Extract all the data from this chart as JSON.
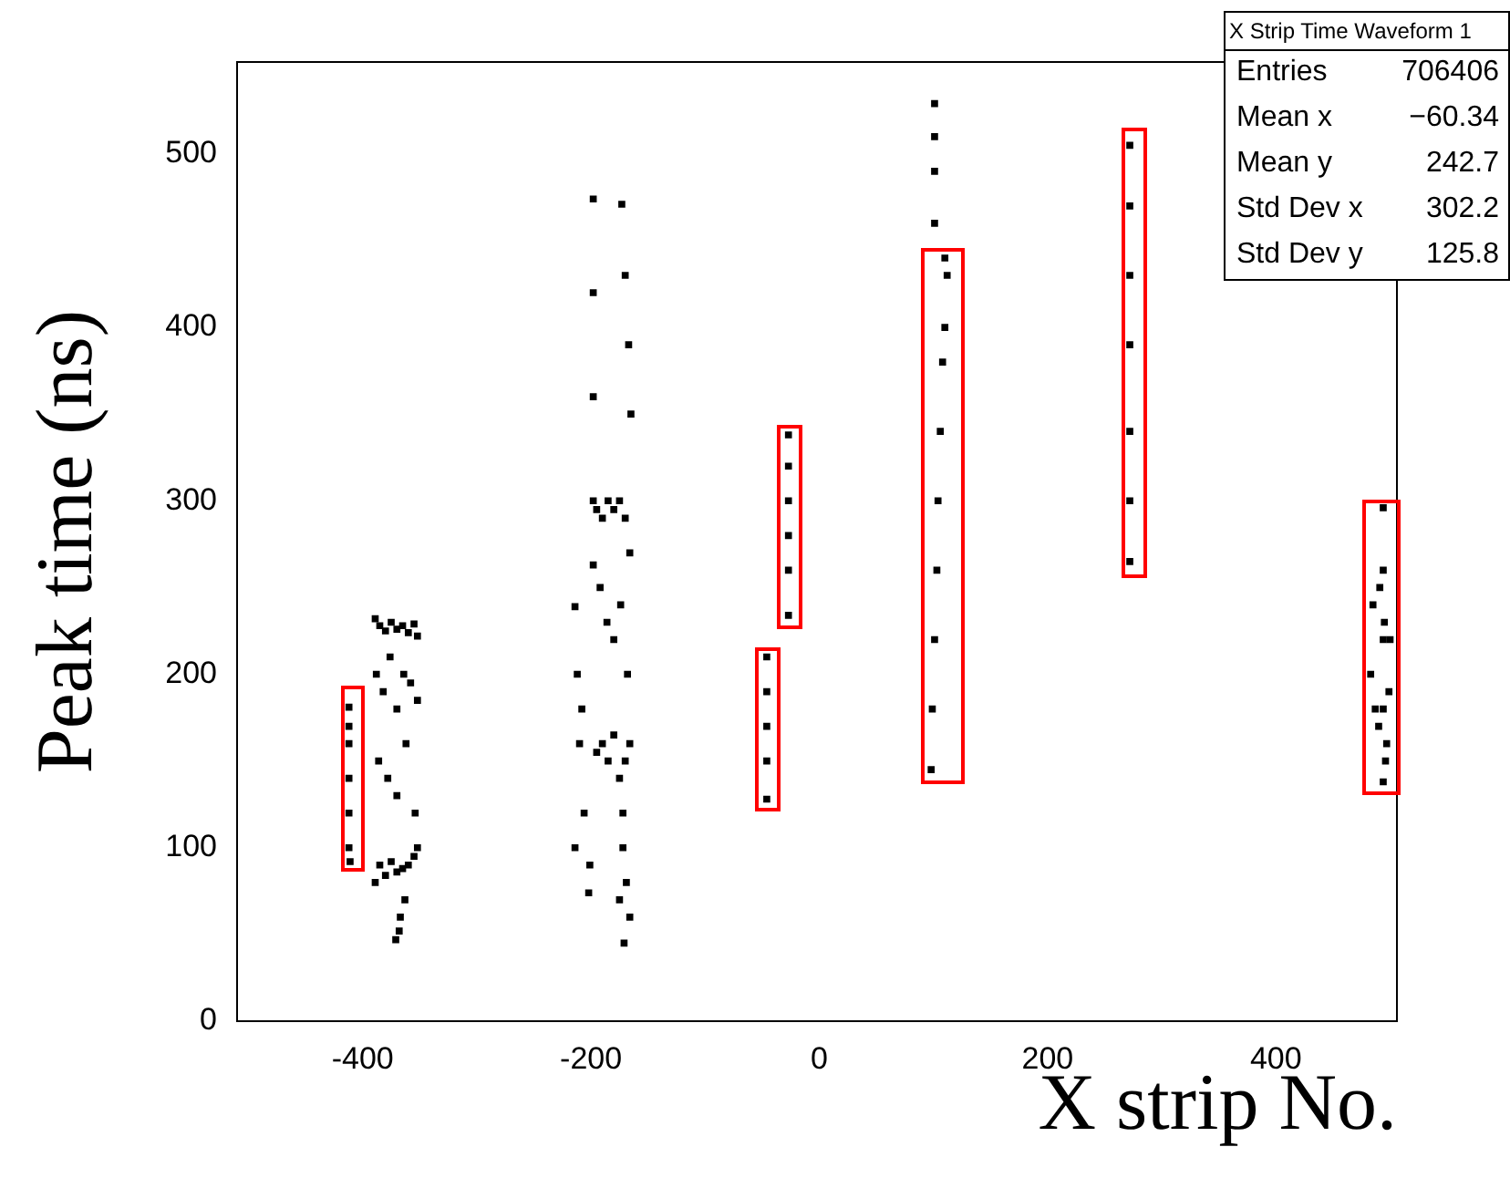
{
  "chart_data": {
    "type": "scatter",
    "title": "X Strip Time Waveform 1",
    "xlabel": "X strip No.",
    "ylabel": "Peak time (ns)",
    "xlim": [
      -510,
      506
    ],
    "ylim": [
      0,
      553
    ],
    "xticks": [
      -400,
      -200,
      0,
      200,
      400
    ],
    "yticks": [
      0,
      100,
      200,
      300,
      400,
      500
    ],
    "grid": false,
    "legend": false,
    "marker": "square",
    "annotations": [
      "Entries 706406",
      "Mean x −60.34",
      "Mean y 242.7",
      "Std Dev x 302.2",
      "Std Dev y 125.8"
    ],
    "series": [
      {
        "color": "#000000",
        "x": [
          -412,
          -412,
          -412,
          -412,
          -412,
          -411,
          -412,
          -389,
          -385,
          -380,
          -375,
          -370,
          -365,
          -360,
          -355,
          -352,
          -389,
          -385,
          -380,
          -375,
          -370,
          -365,
          -360,
          -355,
          -352,
          -388,
          -382,
          -376,
          -370,
          -364,
          -358,
          -352,
          -386,
          -378,
          -370,
          -362,
          -354,
          -371,
          -367,
          -363,
          -368,
          -214,
          -212,
          -210,
          -206,
          -202,
          -214,
          -208,
          -201,
          -198,
          -198,
          -198,
          -198,
          -198,
          -195,
          -190,
          -185,
          -180,
          -175,
          -170,
          -166,
          -195,
          -190,
          -185,
          -180,
          -175,
          -170,
          -166,
          -192,
          -186,
          -180,
          -174,
          -168,
          -173,
          -170,
          -167,
          -165,
          -172,
          -169,
          -166,
          -171,
          -172,
          -175,
          -46,
          -46,
          -46,
          -46,
          -46,
          -27,
          -27,
          -27,
          -27,
          -27,
          -27,
          98,
          99,
          101,
          103,
          104,
          106,
          108,
          110,
          112,
          110,
          101,
          101,
          101,
          101,
          272,
          272,
          272,
          272,
          272,
          272,
          272,
          494,
          494,
          494,
          494,
          494,
          483,
          487,
          491,
          496,
          500,
          485,
          490,
          495,
          499,
          497
        ],
        "values": [
          181,
          160,
          140,
          120,
          100,
          92,
          170,
          232,
          228,
          225,
          230,
          226,
          228,
          224,
          229,
          222,
          80,
          90,
          84,
          92,
          86,
          88,
          90,
          95,
          100,
          200,
          190,
          210,
          180,
          200,
          195,
          185,
          150,
          140,
          130,
          160,
          120,
          47,
          60,
          70,
          52,
          239,
          200,
          160,
          120,
          74,
          100,
          180,
          90,
          474,
          420,
          360,
          300,
          263,
          295,
          290,
          300,
          295,
          300,
          290,
          270,
          155,
          160,
          150,
          165,
          140,
          150,
          160,
          250,
          230,
          220,
          240,
          200,
          471,
          430,
          390,
          350,
          100,
          80,
          60,
          45,
          120,
          70,
          210,
          190,
          170,
          150,
          128,
          338,
          320,
          300,
          280,
          260,
          234,
          145,
          180,
          220,
          260,
          300,
          340,
          380,
          400,
          430,
          440,
          460,
          490,
          510,
          529,
          505,
          470,
          430,
          390,
          340,
          300,
          265,
          296,
          260,
          220,
          180,
          138,
          200,
          180,
          250,
          150,
          220,
          240,
          170,
          230,
          190,
          160
        ]
      }
    ]
  }
}
